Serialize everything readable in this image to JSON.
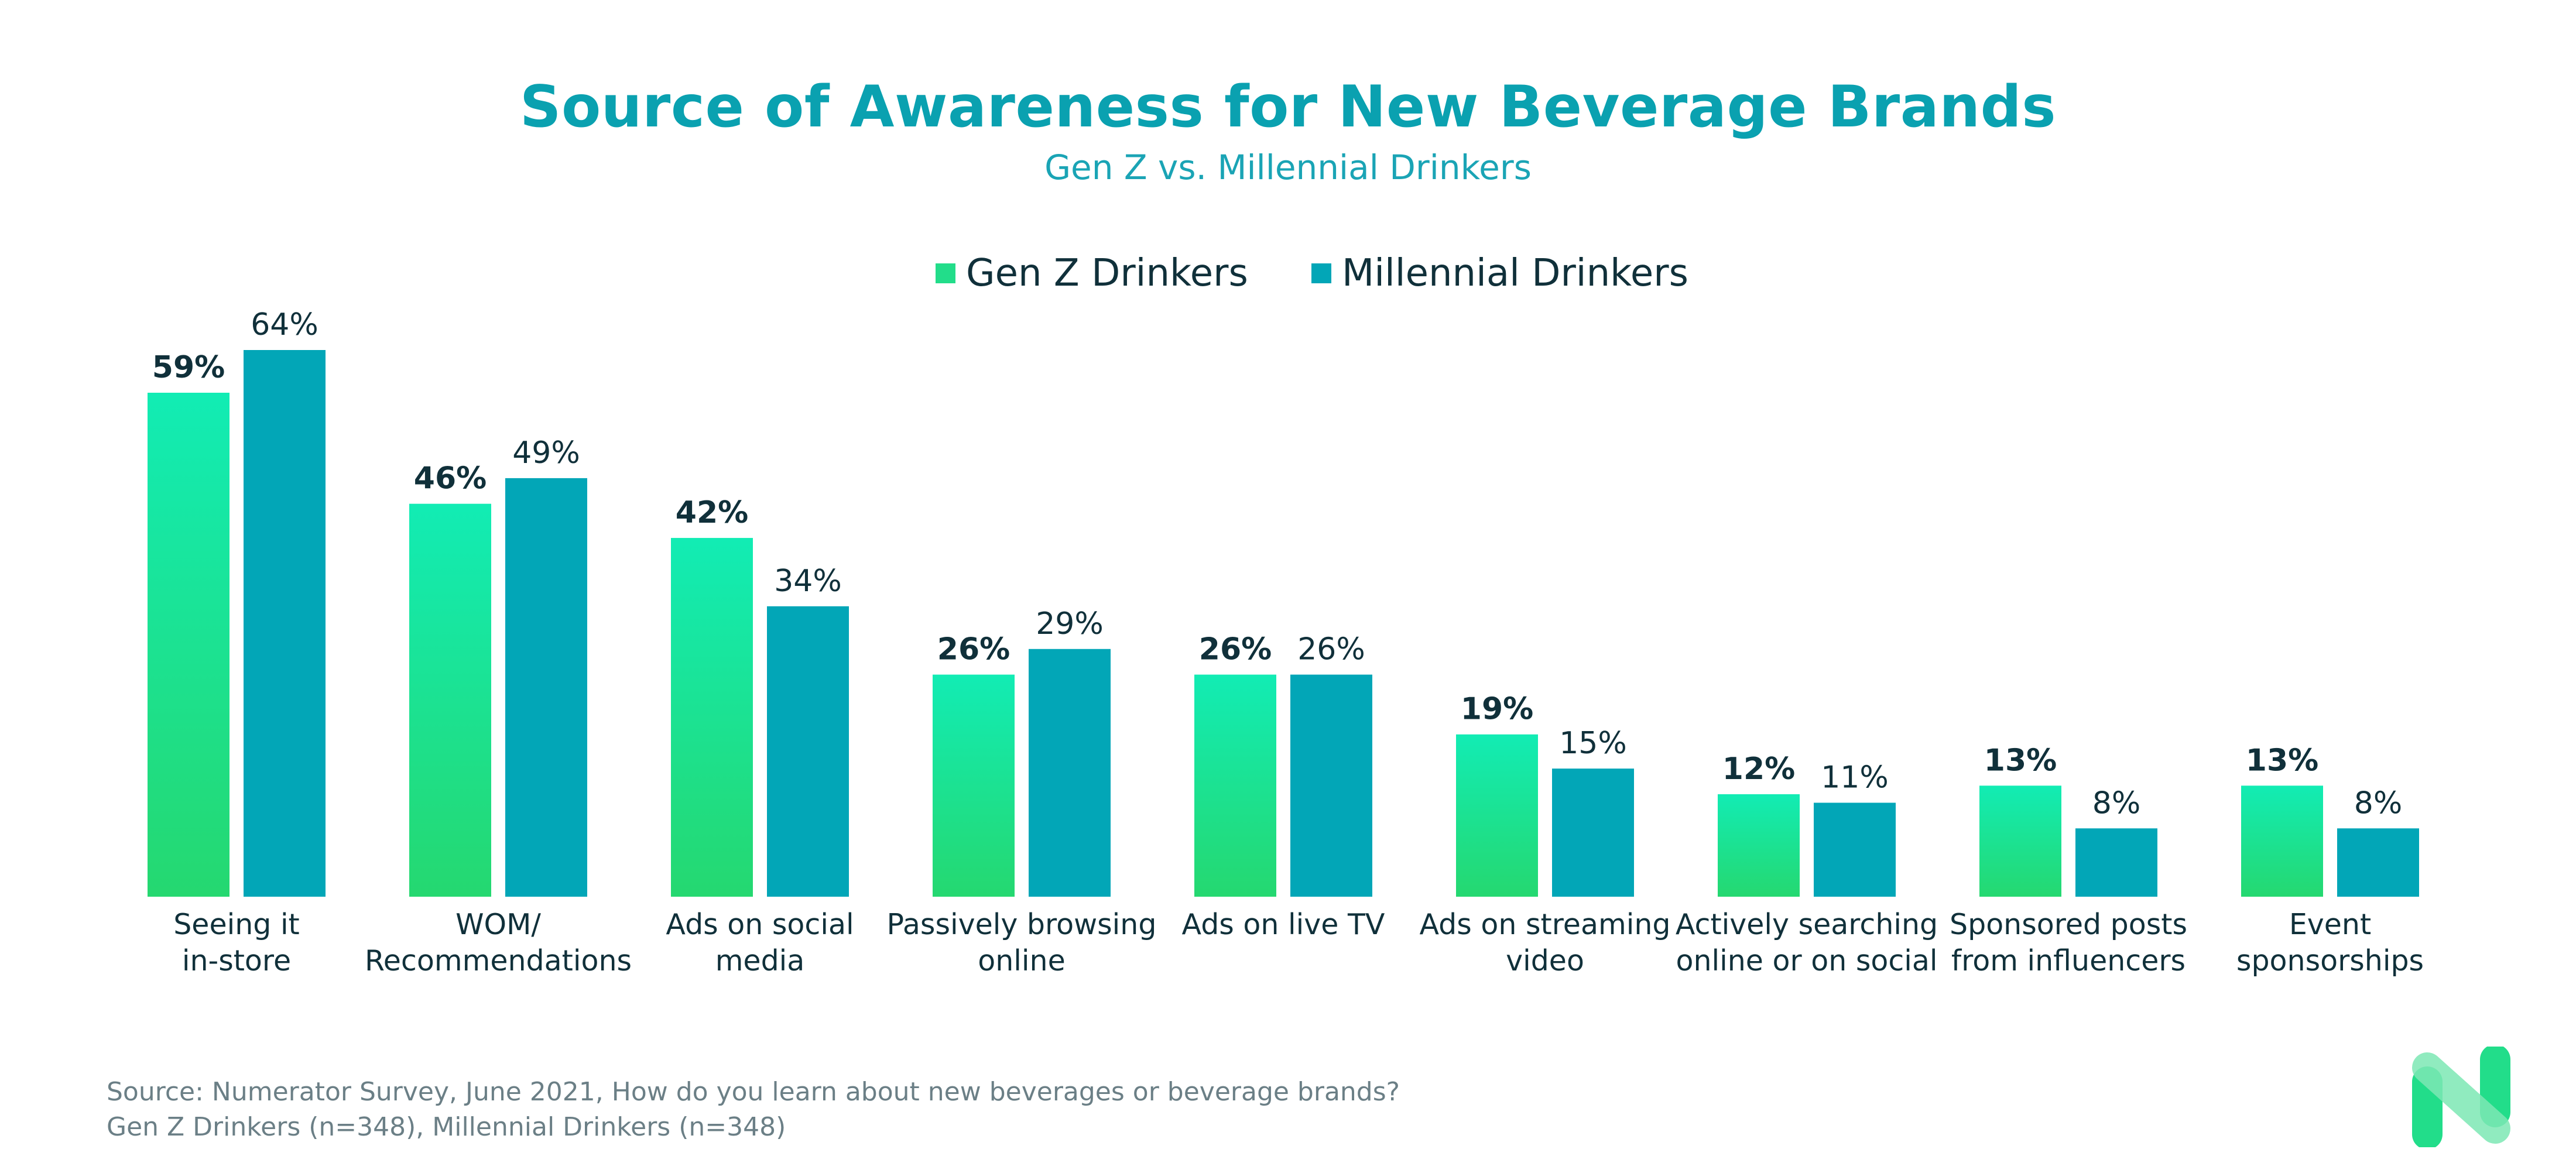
{
  "chart_data": {
    "type": "bar",
    "title": "Source of Awareness for New Beverage Brands",
    "subtitle": "Gen Z vs. Millennial Drinkers",
    "categories": [
      [
        "Seeing it",
        "in-store"
      ],
      [
        "WOM/",
        "Recommendations"
      ],
      [
        "Ads on social",
        "media"
      ],
      [
        "Passively browsing",
        "online"
      ],
      [
        "Ads on live TV"
      ],
      [
        "Ads on streaming",
        "video"
      ],
      [
        "Actively searching",
        "online or on social"
      ],
      [
        "Sponsored posts",
        "from influencers"
      ],
      [
        "Event",
        "sponsorships"
      ]
    ],
    "series": [
      {
        "name": "Gen Z Drinkers",
        "values": [
          59,
          46,
          42,
          26,
          26,
          19,
          12,
          13,
          13
        ],
        "labels": [
          "59%",
          "46%",
          "42%",
          "26%",
          "26%",
          "19%",
          "12%",
          "13%",
          "13%"
        ],
        "color_top": "#12ecb4",
        "color_bottom": "#25d870"
      },
      {
        "name": "Millennial Drinkers",
        "values": [
          64,
          49,
          34,
          29,
          26,
          15,
          11,
          8,
          8
        ],
        "labels": [
          "64%",
          "49%",
          "34%",
          "29%",
          "26%",
          "15%",
          "11%",
          "8%",
          "8%"
        ],
        "color": "#02a6b7"
      }
    ],
    "unit": "%",
    "ylim": [
      0,
      64
    ],
    "grid": false,
    "legend_position": "top-center"
  },
  "footer": {
    "source_line": "Source: Numerator Survey, June 2021, How do you learn about new beverages or beverage brands?",
    "sample_line": "Gen Z Drinkers (n=348), Millennial Drinkers (n=348)"
  },
  "colors": {
    "title": "#0aa1b0",
    "text_dark": "#10303a",
    "footer_text": "#6b7f86"
  },
  "logo": {
    "icon": "numerator-n-logo"
  }
}
